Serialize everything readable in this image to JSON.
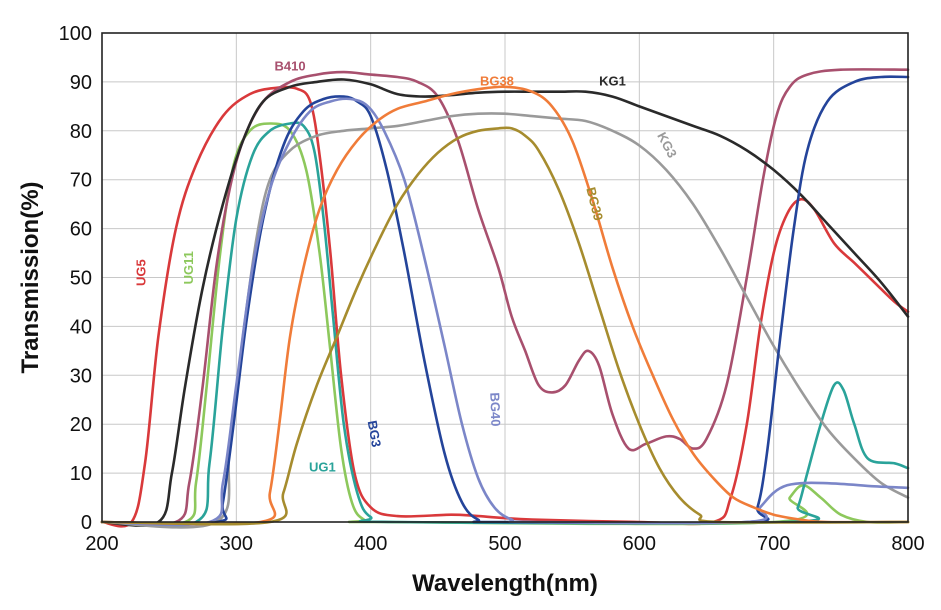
{
  "chart_data": {
    "type": "line",
    "title": "",
    "xlabel": "Wavelength(nm)",
    "ylabel": "Transmission(%)",
    "xlim": [
      200,
      800
    ],
    "ylim": [
      0,
      100
    ],
    "xticks": [
      200,
      300,
      400,
      500,
      600,
      700,
      800
    ],
    "yticks": [
      0,
      10,
      20,
      30,
      40,
      50,
      60,
      70,
      80,
      90,
      100
    ],
    "grid": true,
    "series": [
      {
        "name": "UG5",
        "color": "#d9393b",
        "points": [
          [
            200,
            0
          ],
          [
            222,
            0
          ],
          [
            232,
            12
          ],
          [
            242,
            38
          ],
          [
            255,
            60
          ],
          [
            270,
            73
          ],
          [
            290,
            83
          ],
          [
            310,
            87.5
          ],
          [
            330,
            88.8
          ],
          [
            345,
            88.6
          ],
          [
            355,
            86
          ],
          [
            362,
            75
          ],
          [
            370,
            55
          ],
          [
            378,
            30
          ],
          [
            388,
            10
          ],
          [
            400,
            3
          ],
          [
            420,
            1.2
          ],
          [
            460,
            1.5
          ],
          [
            480,
            1.2
          ],
          [
            520,
            0.5
          ],
          [
            600,
            0
          ],
          [
            655,
            0
          ],
          [
            668,
            5
          ],
          [
            680,
            20
          ],
          [
            690,
            40
          ],
          [
            700,
            55
          ],
          [
            710,
            63
          ],
          [
            720,
            66
          ],
          [
            730,
            64
          ],
          [
            745,
            57
          ],
          [
            760,
            53
          ],
          [
            775,
            49
          ],
          [
            790,
            45
          ],
          [
            800,
            43
          ]
        ]
      },
      {
        "name": "UG11",
        "color": "#8dc85c",
        "points": [
          [
            200,
            0
          ],
          [
            262,
            0
          ],
          [
            270,
            8
          ],
          [
            278,
            28
          ],
          [
            288,
            55
          ],
          [
            298,
            73
          ],
          [
            310,
            80
          ],
          [
            325,
            81.5
          ],
          [
            340,
            80
          ],
          [
            352,
            72
          ],
          [
            362,
            55
          ],
          [
            370,
            35
          ],
          [
            378,
            15
          ],
          [
            386,
            4
          ],
          [
            395,
            0.5
          ],
          [
            410,
            0
          ],
          [
            700,
            0
          ],
          [
            712,
            5
          ],
          [
            722,
            7.5
          ],
          [
            735,
            5
          ],
          [
            750,
            1.5
          ],
          [
            770,
            0
          ],
          [
            800,
            0
          ]
        ]
      },
      {
        "name": "UG1",
        "color": "#2aa39a",
        "points": [
          [
            200,
            0
          ],
          [
            270,
            0
          ],
          [
            280,
            12
          ],
          [
            290,
            40
          ],
          [
            300,
            62
          ],
          [
            312,
            75
          ],
          [
            325,
            80
          ],
          [
            340,
            81.5
          ],
          [
            350,
            81
          ],
          [
            358,
            76
          ],
          [
            365,
            62
          ],
          [
            372,
            42
          ],
          [
            380,
            20
          ],
          [
            390,
            6
          ],
          [
            400,
            1
          ],
          [
            420,
            0
          ],
          [
            710,
            0
          ],
          [
            718,
            3
          ],
          [
            725,
            10
          ],
          [
            735,
            20
          ],
          [
            745,
            28
          ],
          [
            752,
            27
          ],
          [
            760,
            20
          ],
          [
            770,
            13
          ],
          [
            790,
            12
          ],
          [
            800,
            11
          ]
        ]
      },
      {
        "name": "B410",
        "color": "#a8506e",
        "points": [
          [
            200,
            0
          ],
          [
            255,
            0
          ],
          [
            265,
            8
          ],
          [
            275,
            28
          ],
          [
            285,
            52
          ],
          [
            295,
            68
          ],
          [
            305,
            78
          ],
          [
            320,
            86
          ],
          [
            340,
            90
          ],
          [
            360,
            91.5
          ],
          [
            380,
            92
          ],
          [
            400,
            91.5
          ],
          [
            420,
            91
          ],
          [
            435,
            90
          ],
          [
            450,
            87
          ],
          [
            465,
            78
          ],
          [
            480,
            64
          ],
          [
            495,
            52
          ],
          [
            505,
            42
          ],
          [
            515,
            35
          ],
          [
            525,
            28
          ],
          [
            535,
            26.5
          ],
          [
            545,
            28
          ],
          [
            555,
            33
          ],
          [
            562,
            35
          ],
          [
            570,
            32
          ],
          [
            580,
            22
          ],
          [
            592,
            15
          ],
          [
            605,
            16
          ],
          [
            620,
            17.5
          ],
          [
            630,
            17
          ],
          [
            640,
            15
          ],
          [
            650,
            17
          ],
          [
            665,
            28
          ],
          [
            680,
            50
          ],
          [
            692,
            70
          ],
          [
            702,
            83
          ],
          [
            712,
            89
          ],
          [
            725,
            91.5
          ],
          [
            750,
            92.5
          ],
          [
            800,
            92.5
          ]
        ]
      },
      {
        "name": "KG1",
        "color": "#2a2a2a",
        "points": [
          [
            200,
            0
          ],
          [
            242,
            0
          ],
          [
            252,
            10
          ],
          [
            262,
            28
          ],
          [
            275,
            48
          ],
          [
            290,
            65
          ],
          [
            305,
            78
          ],
          [
            320,
            86
          ],
          [
            340,
            89
          ],
          [
            360,
            90
          ],
          [
            380,
            90.5
          ],
          [
            400,
            89.5
          ],
          [
            420,
            87.5
          ],
          [
            440,
            87
          ],
          [
            460,
            87.3
          ],
          [
            480,
            87.8
          ],
          [
            500,
            88
          ],
          [
            520,
            88
          ],
          [
            540,
            88
          ],
          [
            560,
            88
          ],
          [
            580,
            87
          ],
          [
            600,
            85
          ],
          [
            620,
            83
          ],
          [
            640,
            81
          ],
          [
            660,
            79
          ],
          [
            680,
            76
          ],
          [
            700,
            72
          ],
          [
            720,
            67
          ],
          [
            740,
            61
          ],
          [
            760,
            55
          ],
          [
            780,
            49
          ],
          [
            800,
            42
          ]
        ]
      },
      {
        "name": "KG3",
        "color": "#9a9a9a",
        "points": [
          [
            200,
            0
          ],
          [
            285,
            0
          ],
          [
            295,
            15
          ],
          [
            305,
            38
          ],
          [
            315,
            58
          ],
          [
            325,
            70
          ],
          [
            340,
            76
          ],
          [
            360,
            79
          ],
          [
            380,
            80
          ],
          [
            400,
            80.5
          ],
          [
            420,
            81
          ],
          [
            440,
            82
          ],
          [
            460,
            83
          ],
          [
            480,
            83.5
          ],
          [
            500,
            83.5
          ],
          [
            520,
            83
          ],
          [
            540,
            82.5
          ],
          [
            560,
            82
          ],
          [
            580,
            80
          ],
          [
            600,
            77
          ],
          [
            620,
            72
          ],
          [
            640,
            65
          ],
          [
            660,
            56
          ],
          [
            680,
            46
          ],
          [
            700,
            36
          ],
          [
            720,
            27
          ],
          [
            740,
            19
          ],
          [
            760,
            13
          ],
          [
            780,
            8
          ],
          [
            800,
            5
          ]
        ]
      },
      {
        "name": "BG3",
        "color": "#24449a",
        "points": [
          [
            200,
            0
          ],
          [
            285,
            0
          ],
          [
            290,
            4
          ],
          [
            298,
            20
          ],
          [
            308,
            42
          ],
          [
            320,
            62
          ],
          [
            335,
            77
          ],
          [
            350,
            84
          ],
          [
            365,
            86.5
          ],
          [
            380,
            87
          ],
          [
            390,
            86
          ],
          [
            400,
            83
          ],
          [
            412,
            72
          ],
          [
            425,
            55
          ],
          [
            440,
            33
          ],
          [
            455,
            14
          ],
          [
            468,
            4
          ],
          [
            480,
            0.5
          ],
          [
            495,
            0
          ],
          [
            680,
            0
          ],
          [
            688,
            3
          ],
          [
            695,
            14
          ],
          [
            705,
            38
          ],
          [
            715,
            60
          ],
          [
            725,
            76
          ],
          [
            740,
            86
          ],
          [
            760,
            90
          ],
          [
            780,
            91
          ],
          [
            800,
            91
          ]
        ]
      },
      {
        "name": "BG40",
        "color": "#7b86c8",
        "points": [
          [
            200,
            0
          ],
          [
            280,
            0
          ],
          [
            290,
            8
          ],
          [
            300,
            28
          ],
          [
            312,
            52
          ],
          [
            325,
            68
          ],
          [
            340,
            78
          ],
          [
            355,
            84
          ],
          [
            370,
            86
          ],
          [
            385,
            86.5
          ],
          [
            398,
            85
          ],
          [
            410,
            80
          ],
          [
            425,
            70
          ],
          [
            440,
            54
          ],
          [
            455,
            36
          ],
          [
            468,
            20
          ],
          [
            480,
            9
          ],
          [
            492,
            3
          ],
          [
            505,
            0.5
          ],
          [
            520,
            0
          ],
          [
            680,
            0
          ],
          [
            690,
            3
          ],
          [
            700,
            6
          ],
          [
            710,
            7.5
          ],
          [
            725,
            8
          ],
          [
            750,
            7.8
          ],
          [
            775,
            7.3
          ],
          [
            800,
            7
          ]
        ]
      },
      {
        "name": "BG38",
        "color": "#f07c39",
        "points": [
          [
            200,
            0
          ],
          [
            318,
            0
          ],
          [
            325,
            6
          ],
          [
            332,
            20
          ],
          [
            340,
            38
          ],
          [
            350,
            52
          ],
          [
            362,
            64
          ],
          [
            375,
            72
          ],
          [
            390,
            78
          ],
          [
            405,
            82
          ],
          [
            420,
            84.5
          ],
          [
            440,
            86
          ],
          [
            460,
            87.5
          ],
          [
            480,
            88.5
          ],
          [
            500,
            89
          ],
          [
            520,
            88
          ],
          [
            535,
            85
          ],
          [
            550,
            78
          ],
          [
            565,
            66
          ],
          [
            580,
            52
          ],
          [
            595,
            40
          ],
          [
            610,
            30
          ],
          [
            625,
            21
          ],
          [
            640,
            14
          ],
          [
            655,
            9
          ],
          [
            670,
            5
          ],
          [
            685,
            3
          ],
          [
            700,
            1.5
          ],
          [
            720,
            0.5
          ],
          [
            740,
            0
          ],
          [
            800,
            0
          ]
        ]
      },
      {
        "name": "BG39",
        "color": "#a68c2e",
        "points": [
          [
            200,
            0
          ],
          [
            325,
            0
          ],
          [
            335,
            6
          ],
          [
            345,
            16
          ],
          [
            360,
            28
          ],
          [
            375,
            38
          ],
          [
            390,
            48
          ],
          [
            405,
            57
          ],
          [
            420,
            65
          ],
          [
            435,
            71
          ],
          [
            450,
            75.5
          ],
          [
            465,
            78.5
          ],
          [
            480,
            80
          ],
          [
            495,
            80.5
          ],
          [
            505,
            80.5
          ],
          [
            515,
            79
          ],
          [
            525,
            76
          ],
          [
            540,
            68
          ],
          [
            555,
            57
          ],
          [
            570,
            44
          ],
          [
            585,
            31
          ],
          [
            600,
            20
          ],
          [
            615,
            11
          ],
          [
            630,
            5
          ],
          [
            645,
            1.5
          ],
          [
            660,
            0
          ],
          [
            800,
            0
          ]
        ]
      }
    ],
    "annotations": [
      {
        "text": "B410",
        "x": 340,
        "y": 93,
        "rotate": 0,
        "color": "#a8506e"
      },
      {
        "text": "BG38",
        "x": 494,
        "y": 90,
        "rotate": 0,
        "color": "#f07c39"
      },
      {
        "text": "KG1",
        "x": 580,
        "y": 90,
        "rotate": 0,
        "color": "#2a2a2a"
      },
      {
        "text": "KG3",
        "x": 620,
        "y": 77,
        "rotate": 62,
        "color": "#9a9a9a"
      },
      {
        "text": "BG39",
        "x": 566,
        "y": 65,
        "rotate": 76,
        "color": "#a68c2e"
      },
      {
        "text": "UG5",
        "x": 230,
        "y": 51,
        "rotate": -90,
        "color": "#d9393b"
      },
      {
        "text": "UG11",
        "x": 265,
        "y": 52,
        "rotate": -90,
        "color": "#8dc85c"
      },
      {
        "text": "BG40",
        "x": 492,
        "y": 23,
        "rotate": 88,
        "color": "#7b86c8"
      },
      {
        "text": "BG3",
        "x": 402,
        "y": 18,
        "rotate": 80,
        "color": "#24449a"
      },
      {
        "text": "UG1",
        "x": 364,
        "y": 11,
        "rotate": 0,
        "color": "#2aa39a"
      }
    ]
  }
}
